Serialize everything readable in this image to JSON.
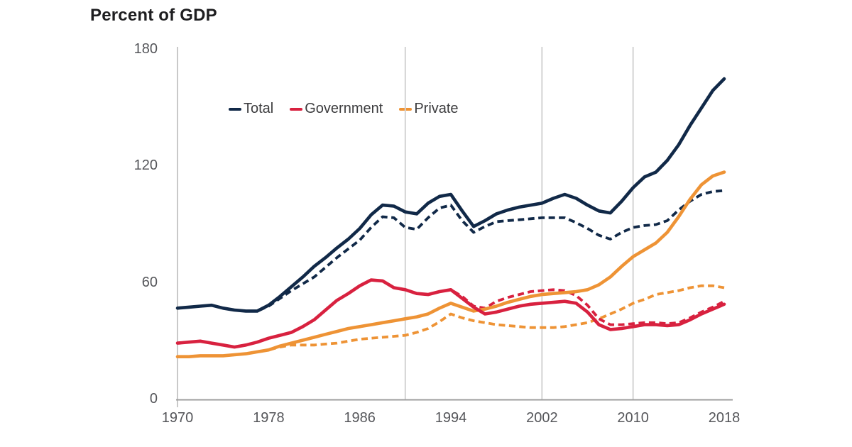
{
  "chart_data": {
    "type": "line",
    "title": "Percent of GDP",
    "xlabel": "",
    "ylabel": "Percent of GDP",
    "xlim": [
      1970,
      2018
    ],
    "ylim": [
      0,
      180
    ],
    "yticks": [
      0,
      60,
      120,
      180
    ],
    "xticks": [
      1970,
      1978,
      1986,
      1994,
      2002,
      2010,
      2018
    ],
    "grid_years": [
      1990,
      2002,
      2010
    ],
    "legend_position": "top-left-inside",
    "colors": {
      "total": "#112948",
      "government": "#d8213f",
      "private": "#ee9335",
      "grid": "#d4d4d4",
      "axis": "#9e9e9e",
      "tick_text": "#55565a"
    },
    "legend": [
      {
        "label": "Total",
        "color": "#112948"
      },
      {
        "label": "Government",
        "color": "#d8213f"
      },
      {
        "label": "Private",
        "color": "#ee9335"
      }
    ],
    "x": [
      1970,
      1971,
      1972,
      1973,
      1974,
      1975,
      1976,
      1977,
      1978,
      1979,
      1980,
      1981,
      1982,
      1983,
      1984,
      1985,
      1986,
      1987,
      1988,
      1989,
      1990,
      1991,
      1992,
      1993,
      1994,
      1995,
      1996,
      1997,
      1998,
      1999,
      2000,
      2001,
      2002,
      2003,
      2004,
      2005,
      2006,
      2007,
      2008,
      2009,
      2010,
      2011,
      2012,
      2013,
      2014,
      2015,
      2016,
      2017,
      2018
    ],
    "series": [
      {
        "name": "Total",
        "style": "solid",
        "color": "#112948",
        "values": [
          47,
          47.5,
          48,
          48.5,
          47,
          46,
          45.5,
          45.5,
          48.5,
          53,
          58,
          63,
          68.5,
          73,
          78,
          82.5,
          88,
          95,
          100,
          99.5,
          96.5,
          95.5,
          101,
          104.5,
          105.5,
          97,
          89,
          92,
          95.5,
          97.5,
          99,
          100,
          101,
          103.5,
          105.5,
          103.5,
          100,
          97,
          96,
          102,
          109,
          114.5,
          117,
          123,
          131,
          141,
          150,
          159,
          165
        ]
      },
      {
        "name": "Total (dashed)",
        "style": "dashed",
        "color": "#112948",
        "values": [
          47,
          47.5,
          48,
          48.5,
          47,
          46,
          45.5,
          45.5,
          48,
          52,
          56,
          59.5,
          63,
          68,
          73,
          77.5,
          82,
          88.5,
          94,
          93.5,
          88.5,
          87.5,
          93.5,
          98.5,
          100,
          92,
          86,
          89,
          91.5,
          92,
          92.5,
          93,
          93.5,
          93.5,
          93.5,
          91,
          88,
          84.5,
          82.5,
          86,
          88.5,
          89.5,
          90,
          92,
          97.5,
          102,
          105.5,
          107,
          107.5
        ]
      },
      {
        "name": "Government",
        "style": "solid",
        "color": "#d8213f",
        "values": [
          29,
          29.5,
          30,
          29,
          28,
          27,
          28,
          29.5,
          31.5,
          33,
          34.5,
          37.5,
          41,
          46,
          51,
          54.5,
          58.5,
          61.5,
          61,
          57.5,
          56.5,
          54.5,
          54,
          55.5,
          56.5,
          52,
          47.5,
          44,
          45,
          46.5,
          48,
          49,
          49.5,
          50,
          50.5,
          49.5,
          45,
          38.5,
          36,
          36.5,
          37.5,
          38.5,
          38.5,
          38,
          38.5,
          41,
          44,
          46.5,
          49
        ]
      },
      {
        "name": "Government (dashed)",
        "style": "dashed",
        "color": "#d8213f",
        "values": [
          29,
          29.5,
          30,
          29,
          28,
          27,
          28,
          29.5,
          31.5,
          33,
          34.5,
          37.5,
          41,
          46,
          51,
          54.5,
          58.5,
          61.5,
          61,
          57.5,
          56.5,
          54.5,
          54,
          55.5,
          56.5,
          53,
          48,
          47,
          50.5,
          52.5,
          54,
          55.5,
          56,
          56.5,
          56,
          53.5,
          48.5,
          41.5,
          38.5,
          38.5,
          39,
          39.5,
          39.5,
          39,
          39.5,
          42,
          45,
          47.5,
          50.5
        ]
      },
      {
        "name": "Private",
        "style": "solid",
        "color": "#ee9335",
        "values": [
          22,
          22,
          22.5,
          22.5,
          22.5,
          23,
          23.5,
          24.5,
          25.5,
          27.5,
          29,
          30.5,
          32,
          33.5,
          35,
          36.5,
          37.5,
          38.5,
          39.5,
          40.5,
          41.5,
          42.5,
          44,
          47,
          49.5,
          47.5,
          45.5,
          46.5,
          48,
          50,
          51.5,
          53,
          54,
          54.5,
          55,
          55.5,
          56.5,
          59,
          63,
          68.5,
          73.5,
          77,
          80.5,
          86,
          94,
          103,
          110.5,
          115,
          117
        ]
      },
      {
        "name": "Private (dashed)",
        "style": "dashed",
        "color": "#ee9335",
        "values": [
          22,
          22,
          22.5,
          22.5,
          22.5,
          23,
          23.5,
          24.5,
          25.5,
          27,
          28,
          28,
          28,
          28.5,
          29,
          30,
          31,
          31.5,
          32,
          32.5,
          33,
          34.5,
          36.5,
          40,
          44,
          42,
          40.5,
          39.5,
          38.5,
          38,
          37.5,
          37,
          37,
          37,
          37.5,
          38.5,
          39.5,
          41.5,
          44,
          46.5,
          49.5,
          51.5,
          54,
          55,
          56,
          57.5,
          58.5,
          58.5,
          57.5
        ]
      }
    ]
  }
}
